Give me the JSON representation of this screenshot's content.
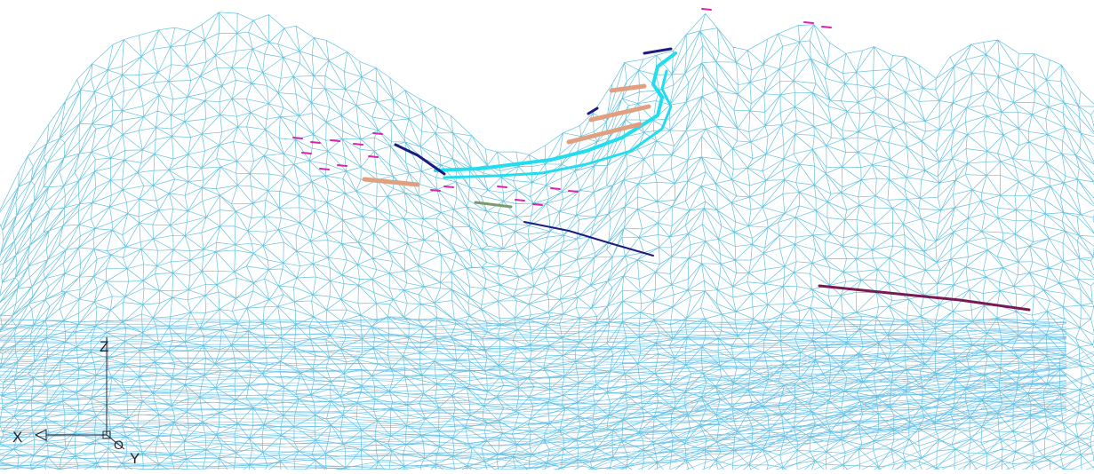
{
  "viewport": {
    "background": "#ffffff",
    "mesh_color": "#66c2dd",
    "mesh_color_dense": "#5bbbe6"
  },
  "ucs": {
    "x_label": "X",
    "y_label": "Y",
    "z_label": "Z",
    "origin_label": "O",
    "icon": "ucs-axis-icon"
  },
  "overlay_colors": {
    "cyan": "#22dded",
    "navy": "#1c1c80",
    "salmon": "#e0a080",
    "magenta": "#dd22aa",
    "maroon": "#7a1a55",
    "olive": "#7a9a6a"
  }
}
